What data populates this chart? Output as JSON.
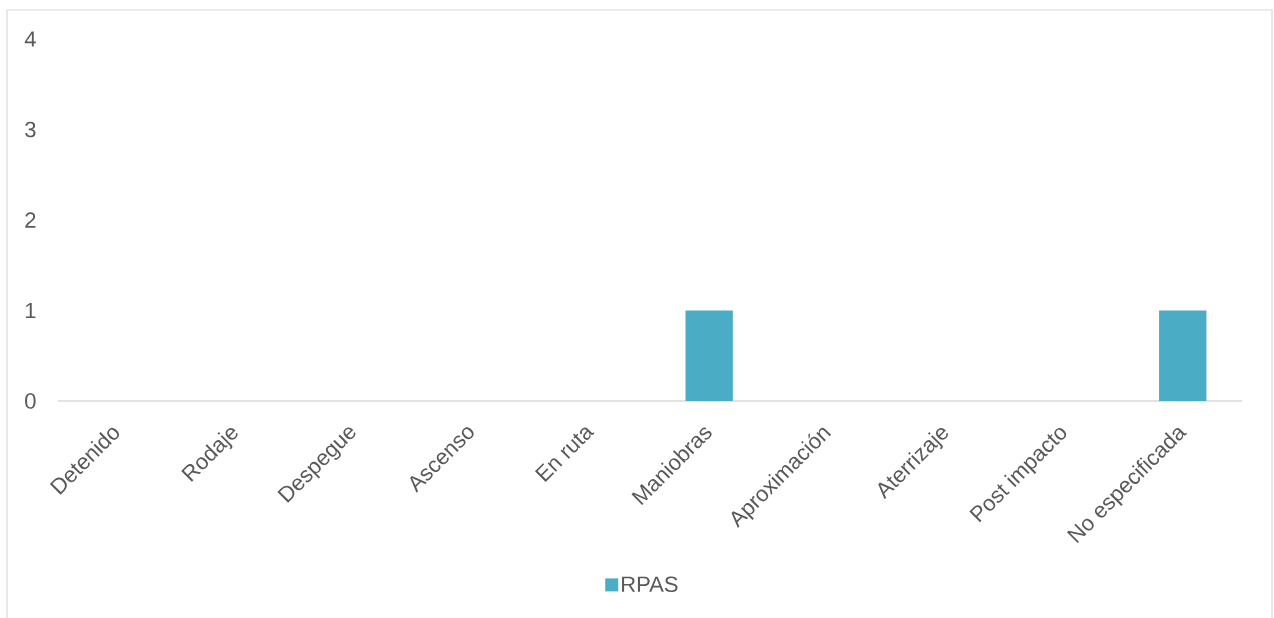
{
  "chart_data": {
    "type": "bar",
    "categories": [
      "Detenido",
      "Rodaje",
      "Despegue",
      "Ascenso",
      "En ruta",
      "Maniobras",
      "Aproximación",
      "Aterrizaje",
      "Post impacto",
      "No especificada"
    ],
    "series": [
      {
        "name": "RPAS",
        "color": "#4BACC6",
        "values": [
          0,
          0,
          0,
          0,
          0,
          1,
          0,
          0,
          0,
          1
        ]
      }
    ],
    "ylim": [
      0,
      4
    ],
    "yticks": [
      0,
      1,
      2,
      3,
      4
    ],
    "grid": false,
    "legend": "bottom"
  }
}
